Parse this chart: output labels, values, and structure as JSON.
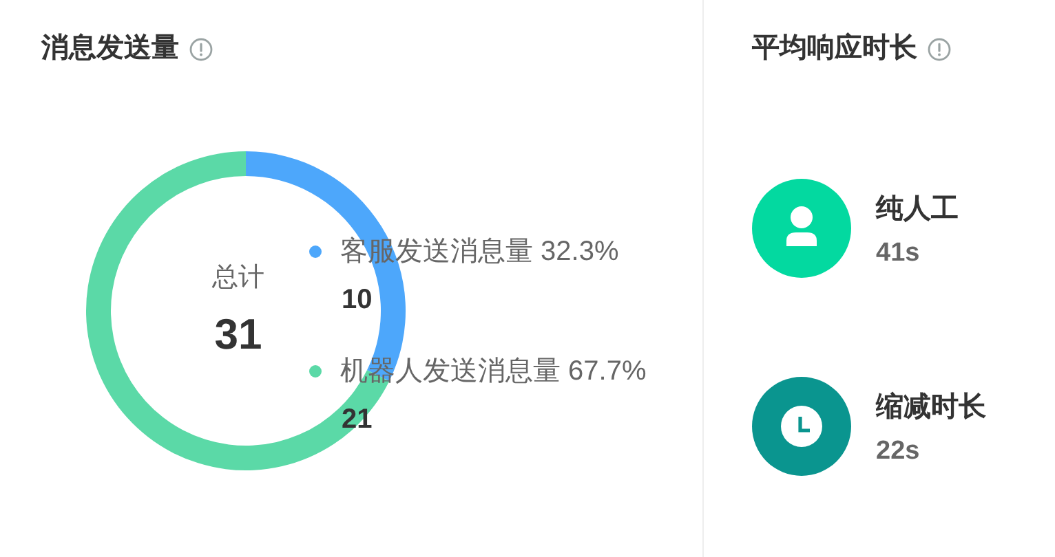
{
  "chart_data": [
    {
      "type": "donut",
      "title": "消息发送量",
      "categories": [
        "客服发送消息量 32.3%",
        "机器人发送消息量 67.7%"
      ],
      "values": [
        10,
        21
      ],
      "colors": [
        "#4da7fb",
        "#5bd9a7"
      ],
      "legend": "right",
      "data_labels": true,
      "annotations": [
        "总计",
        "31"
      ]
    },
    {
      "type": "other",
      "title": "平均响应时长",
      "annotations": [
        "纯人工",
        "41s",
        "缩减时长",
        "22s"
      ]
    }
  ]
}
